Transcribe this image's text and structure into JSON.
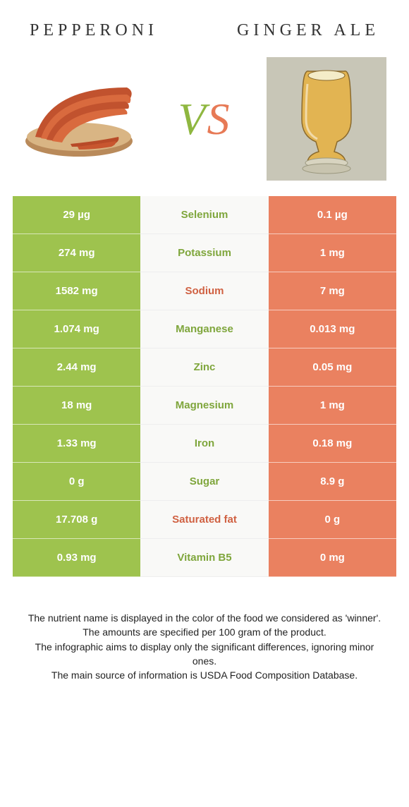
{
  "colors": {
    "left_bg": "#9ec34e",
    "right_bg": "#ea8160",
    "mid_bg": "#f9f9f7",
    "winner_left_text": "#7fa63c",
    "winner_right_text": "#d06142",
    "title_text": "#333333",
    "footer_text": "#222222"
  },
  "foods": {
    "left": "pepperoni",
    "right": "ginger ale"
  },
  "vs": {
    "v": "V",
    "s": "S"
  },
  "rows": [
    {
      "label": "Selenium",
      "left": "29 µg",
      "right": "0.1 µg",
      "winner": "left"
    },
    {
      "label": "Potassium",
      "left": "274 mg",
      "right": "1 mg",
      "winner": "left"
    },
    {
      "label": "Sodium",
      "left": "1582 mg",
      "right": "7 mg",
      "winner": "right"
    },
    {
      "label": "Manganese",
      "left": "1.074 mg",
      "right": "0.013 mg",
      "winner": "left"
    },
    {
      "label": "Zinc",
      "left": "2.44 mg",
      "right": "0.05 mg",
      "winner": "left"
    },
    {
      "label": "Magnesium",
      "left": "18 mg",
      "right": "1 mg",
      "winner": "left"
    },
    {
      "label": "Iron",
      "left": "1.33 mg",
      "right": "0.18 mg",
      "winner": "left"
    },
    {
      "label": "Sugar",
      "left": "0 g",
      "right": "8.9 g",
      "winner": "left"
    },
    {
      "label": "Saturated fat",
      "left": "17.708 g",
      "right": "0 g",
      "winner": "right"
    },
    {
      "label": "Vitamin B5",
      "left": "0.93 mg",
      "right": "0 mg",
      "winner": "left"
    }
  ],
  "footer": [
    "The nutrient name is displayed in the color of the food we considered as 'winner'.",
    "The amounts are specified per 100 gram of the product.",
    "The infographic aims to display only the significant differences, ignoring minor ones.",
    "The main source of information is USDA Food Composition Database."
  ]
}
